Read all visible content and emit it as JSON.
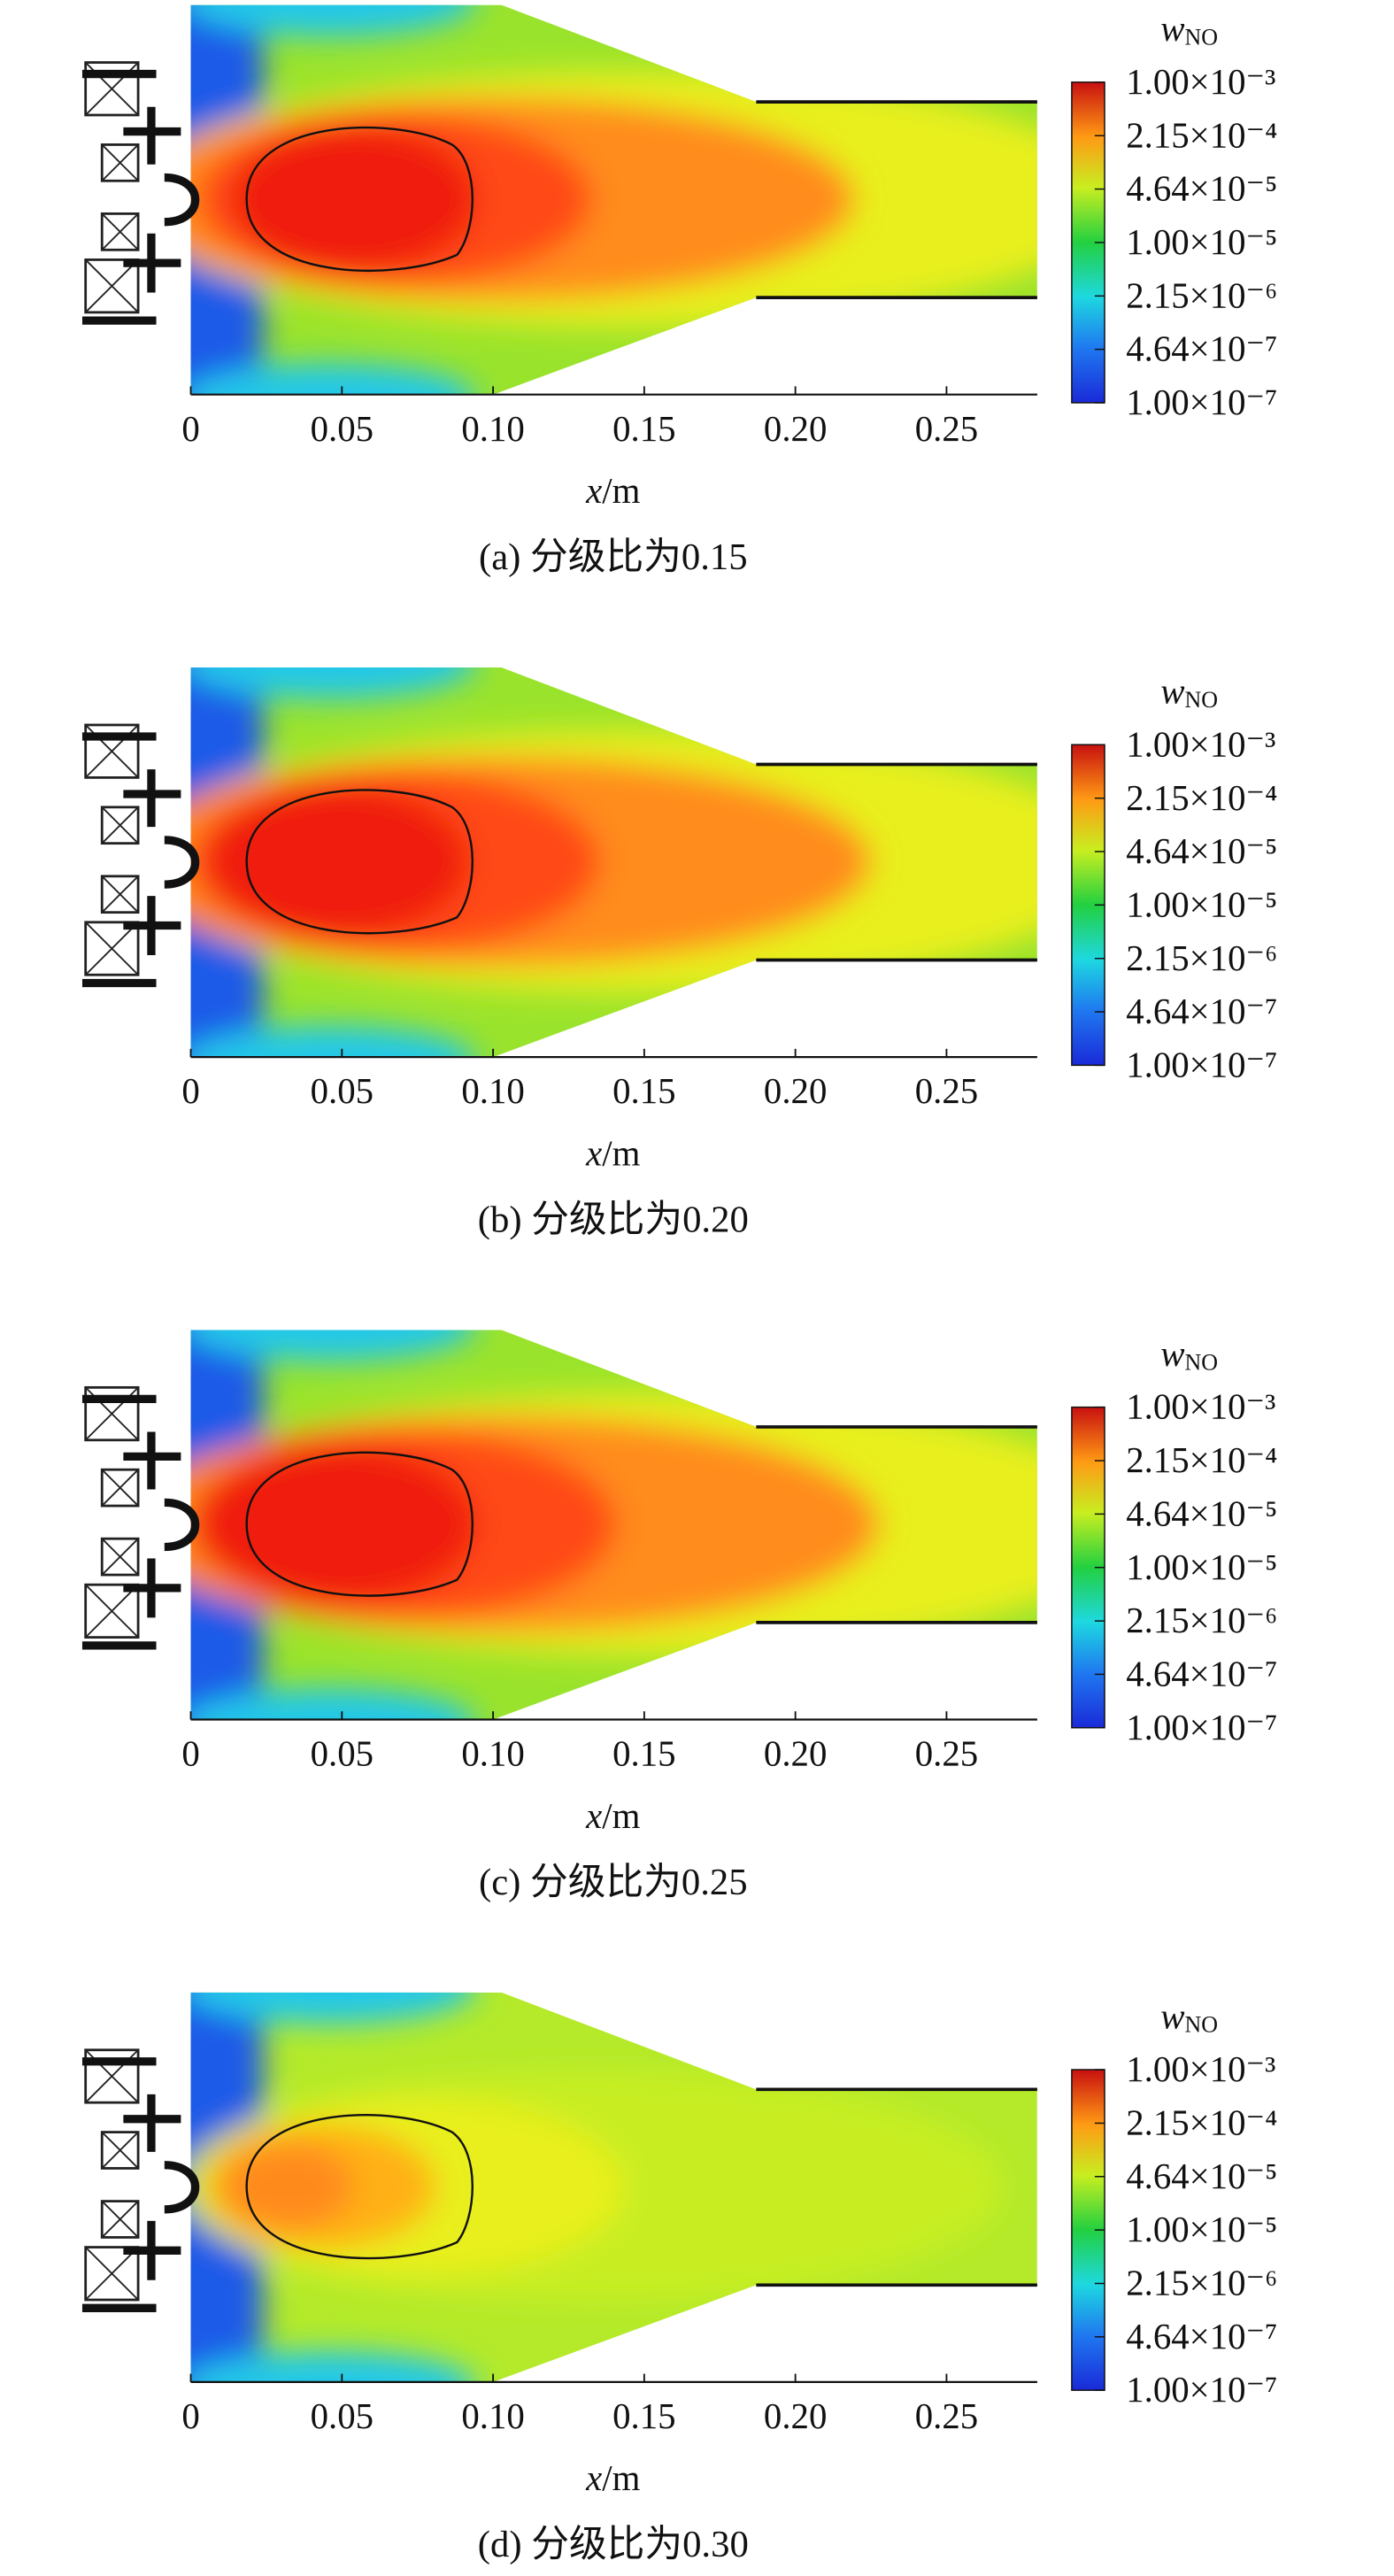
{
  "chart_data": [
    {
      "type": "contour",
      "caption": "(a) 分级比为0.15",
      "xlabel": {
        "variable": "x",
        "unit": "/m"
      },
      "xlim": [
        0,
        0.28
      ],
      "xticks": [
        0,
        0.05,
        {
          "value": 0.1,
          "label": "0.10"
        },
        0.15,
        {
          "value": 0.2,
          "label": "0.20"
        },
        0.25
      ],
      "colorbar": {
        "symbol": "w",
        "subscript": "NO",
        "log": true,
        "lim": [
          1e-07,
          0.001
        ],
        "ticks": [
          {
            "value": 0.001,
            "label": "1.00×10⁻³"
          },
          {
            "value": 0.000215,
            "label": "2.15×10⁻⁴"
          },
          {
            "value": 4.64e-05,
            "label": "4.64×10⁻⁵"
          },
          {
            "value": 1e-05,
            "label": "1.00×10⁻⁵"
          },
          {
            "value": 2.15e-06,
            "label": "2.15×10⁻⁶"
          },
          {
            "value": 4.64e-07,
            "label": "4.64×10⁻⁷"
          },
          {
            "value": 1e-07,
            "label": "1.00×10⁻⁷"
          }
        ]
      }
    },
    {
      "type": "contour",
      "caption": "(b) 分级比为0.20",
      "xlabel": {
        "variable": "x",
        "unit": "/m"
      },
      "xlim": [
        0,
        0.28
      ],
      "xticks": [
        0,
        0.05,
        {
          "value": 0.1,
          "label": "0.10"
        },
        0.15,
        {
          "value": 0.2,
          "label": "0.20"
        },
        0.25
      ],
      "colorbar": {
        "symbol": "w",
        "subscript": "NO",
        "log": true,
        "lim": [
          1e-07,
          0.001
        ],
        "ticks": [
          {
            "value": 0.001,
            "label": "1.00×10⁻³"
          },
          {
            "value": 0.000215,
            "label": "2.15×10⁻⁴"
          },
          {
            "value": 4.64e-05,
            "label": "4.64×10⁻⁵"
          },
          {
            "value": 1e-05,
            "label": "1.00×10⁻⁵"
          },
          {
            "value": 2.15e-06,
            "label": "2.15×10⁻⁶"
          },
          {
            "value": 4.64e-07,
            "label": "4.64×10⁻⁷"
          },
          {
            "value": 1e-07,
            "label": "1.00×10⁻⁷"
          }
        ]
      }
    },
    {
      "type": "contour",
      "caption": "(c) 分级比为0.25",
      "xlabel": {
        "variable": "x",
        "unit": "/m"
      },
      "xlim": [
        0,
        0.28
      ],
      "xticks": [
        0,
        0.05,
        {
          "value": 0.1,
          "label": "0.10"
        },
        0.15,
        {
          "value": 0.2,
          "label": "0.20"
        },
        0.25
      ],
      "colorbar": {
        "symbol": "w",
        "subscript": "NO",
        "log": true,
        "lim": [
          1e-07,
          0.001
        ],
        "ticks": [
          {
            "value": 0.001,
            "label": "1.00×10⁻³"
          },
          {
            "value": 0.000215,
            "label": "2.15×10⁻⁴"
          },
          {
            "value": 4.64e-05,
            "label": "4.64×10⁻⁵"
          },
          {
            "value": 1e-05,
            "label": "1.00×10⁻⁵"
          },
          {
            "value": 2.15e-06,
            "label": "2.15×10⁻⁶"
          },
          {
            "value": 4.64e-07,
            "label": "4.64×10⁻⁷"
          },
          {
            "value": 1e-07,
            "label": "1.00×10⁻⁷"
          }
        ]
      }
    },
    {
      "type": "contour",
      "caption": "(d) 分级比为0.30",
      "xlabel": {
        "variable": "x",
        "unit": "/m"
      },
      "xlim": [
        0,
        0.28
      ],
      "xticks": [
        0,
        0.05,
        {
          "value": 0.1,
          "label": "0.10"
        },
        0.15,
        {
          "value": 0.2,
          "label": "0.20"
        },
        0.25
      ],
      "colorbar": {
        "symbol": "w",
        "subscript": "NO",
        "log": true,
        "lim": [
          1e-07,
          0.001
        ],
        "ticks": [
          {
            "value": 0.001,
            "label": "1.00×10⁻³"
          },
          {
            "value": 0.000215,
            "label": "2.15×10⁻⁴"
          },
          {
            "value": 4.64e-05,
            "label": "4.64×10⁻⁵"
          },
          {
            "value": 1e-05,
            "label": "1.00×10⁻⁵"
          },
          {
            "value": 2.15e-06,
            "label": "2.15×10⁻⁶"
          },
          {
            "value": 4.64e-07,
            "label": "4.64×10⁻⁷"
          },
          {
            "value": 1e-07,
            "label": "1.00×10⁻⁷"
          }
        ]
      }
    }
  ]
}
